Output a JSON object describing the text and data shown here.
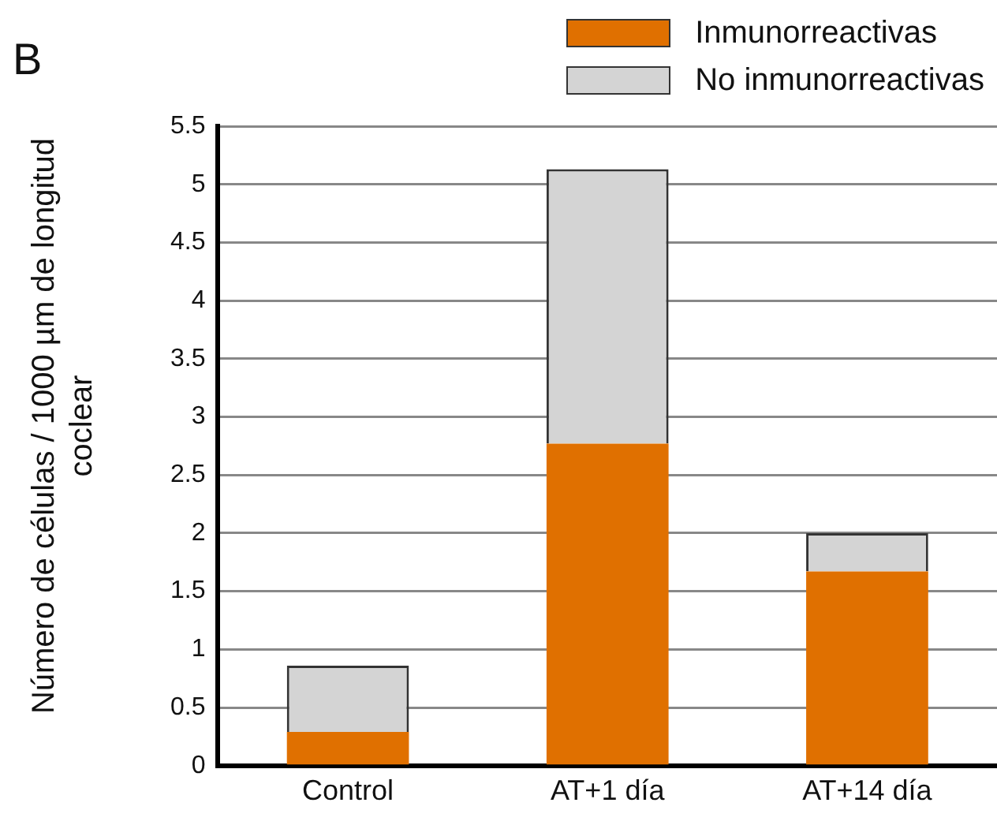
{
  "chart_data": {
    "type": "bar",
    "stacked": true,
    "ylabel": "Número de células / 1000 µm de longitud coclear",
    "annotations": [
      "B"
    ],
    "categories": [
      "Control",
      "AT+1 día",
      "AT+14 día"
    ],
    "series": [
      {
        "name": "Inmunorreactivas",
        "color": "#e07000",
        "values": [
          0.29,
          2.77,
          1.67
        ]
      },
      {
        "name": "No inmunorreactivas",
        "color": "#d4d4d4",
        "values": [
          0.57,
          2.36,
          0.33
        ]
      }
    ],
    "ylim": [
      0,
      5.5
    ],
    "yticks": [
      0,
      0.5,
      1,
      1.5,
      2,
      2.5,
      3,
      3.5,
      4,
      4.5,
      5,
      5.5
    ],
    "grid": "y",
    "legend": "top right"
  }
}
